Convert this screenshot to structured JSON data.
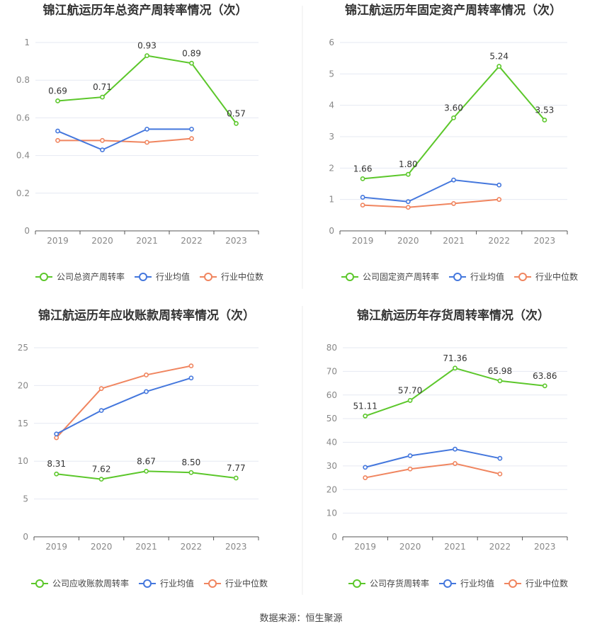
{
  "colors": {
    "company": "#5cc72b",
    "average": "#4477dd",
    "median": "#f0855f",
    "grid": "#e6e9f2",
    "axis": "#555555",
    "tick": "#888888",
    "title": "#333333",
    "divider": "#eeeeee"
  },
  "footer": "数据来源：恒生聚源",
  "chart_data": [
    {
      "type": "line",
      "title": "锦江航运历年总资产周转率情况（次）",
      "categories": [
        "2019",
        "2020",
        "2021",
        "2022",
        "2023"
      ],
      "ylim": [
        0,
        1
      ],
      "yticks": [
        "0",
        "0.2",
        "0.4",
        "0.6",
        "0.8",
        "1"
      ],
      "legend": [
        "公司总资产周转率",
        "行业均值",
        "行业中位数"
      ],
      "series": [
        {
          "name": "公司总资产周转率",
          "role": "company",
          "values": [
            0.69,
            0.71,
            0.93,
            0.89,
            0.57
          ],
          "labels": [
            "0.69",
            "0.71",
            "0.93",
            "0.89",
            "0.57"
          ]
        },
        {
          "name": "行业均值",
          "role": "average",
          "values": [
            0.53,
            0.43,
            0.54,
            0.54,
            null
          ]
        },
        {
          "name": "行业中位数",
          "role": "median",
          "values": [
            0.48,
            0.48,
            0.47,
            0.49,
            null
          ]
        }
      ]
    },
    {
      "type": "line",
      "title": "锦江航运历年固定资产周转率情况（次）",
      "categories": [
        "2019",
        "2020",
        "2021",
        "2022",
        "2023"
      ],
      "ylim": [
        0,
        6
      ],
      "yticks": [
        "0",
        "1",
        "2",
        "3",
        "4",
        "5",
        "6"
      ],
      "legend": [
        "公司固定资产周转率",
        "行业均值",
        "行业中位数"
      ],
      "series": [
        {
          "name": "公司固定资产周转率",
          "role": "company",
          "values": [
            1.66,
            1.8,
            3.6,
            5.24,
            3.53
          ],
          "labels": [
            "1.66",
            "1.80",
            "3.60",
            "5.24",
            "3.53"
          ]
        },
        {
          "name": "行业均值",
          "role": "average",
          "values": [
            1.07,
            0.93,
            1.62,
            1.46,
            null
          ]
        },
        {
          "name": "行业中位数",
          "role": "median",
          "values": [
            0.82,
            0.75,
            0.87,
            1.0,
            null
          ]
        }
      ]
    },
    {
      "type": "line",
      "title": "锦江航运历年应收账款周转率情况（次）",
      "categories": [
        "2019",
        "2020",
        "2021",
        "2022",
        "2023"
      ],
      "ylim": [
        0,
        25
      ],
      "yticks": [
        "0",
        "5",
        "10",
        "15",
        "20",
        "25"
      ],
      "legend": [
        "公司应收账款周转率",
        "行业均值",
        "行业中位数"
      ],
      "series": [
        {
          "name": "公司应收账款周转率",
          "role": "company",
          "values": [
            8.31,
            7.62,
            8.67,
            8.5,
            7.77
          ],
          "labels": [
            "8.31",
            "7.62",
            "8.67",
            "8.50",
            "7.77"
          ]
        },
        {
          "name": "行业均值",
          "role": "average",
          "values": [
            13.6,
            16.7,
            19.2,
            21.0,
            null
          ]
        },
        {
          "name": "行业中位数",
          "role": "median",
          "values": [
            13.1,
            19.6,
            21.4,
            22.6,
            null
          ]
        }
      ]
    },
    {
      "type": "line",
      "title": "锦江航运历年存货周转率情况（次）",
      "categories": [
        "2019",
        "2020",
        "2021",
        "2022",
        "2023"
      ],
      "ylim": [
        0,
        80
      ],
      "yticks": [
        "0",
        "10",
        "20",
        "30",
        "40",
        "50",
        "60",
        "70",
        "80"
      ],
      "legend": [
        "公司存货周转率",
        "行业均值",
        "行业中位数"
      ],
      "series": [
        {
          "name": "公司存货周转率",
          "role": "company",
          "values": [
            51.11,
            57.7,
            71.36,
            65.98,
            63.86
          ],
          "labels": [
            "51.11",
            "57.70",
            "71.36",
            "65.98",
            "63.86"
          ]
        },
        {
          "name": "行业均值",
          "role": "average",
          "values": [
            29.4,
            34.3,
            37.1,
            33.2,
            null
          ]
        },
        {
          "name": "行业中位数",
          "role": "median",
          "values": [
            25.0,
            28.7,
            31.0,
            26.6,
            null
          ]
        }
      ]
    }
  ]
}
